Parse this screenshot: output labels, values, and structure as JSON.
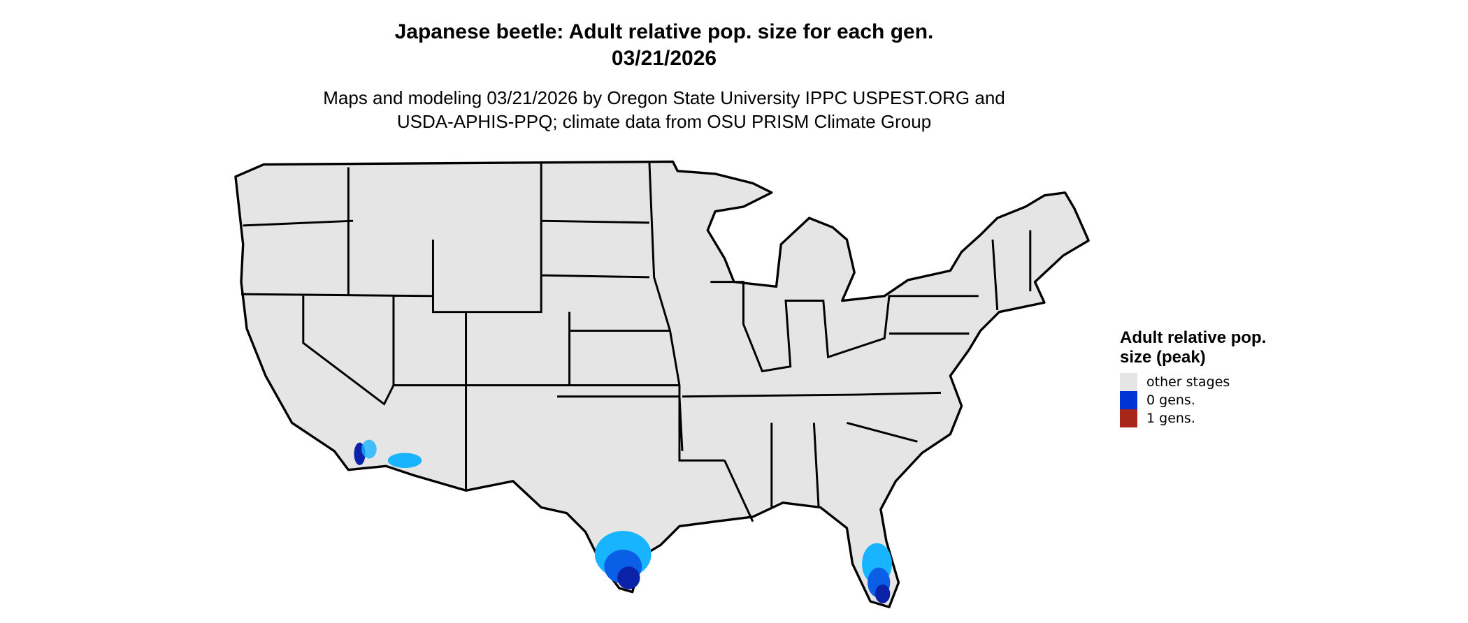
{
  "title": {
    "line1": "Japanese beetle: Adult relative pop. size for each gen.",
    "line2": "03/21/2026"
  },
  "subtitle": {
    "line1": "Maps and modeling 03/21/2026 by Oregon State University IPPC USPEST.ORG and",
    "line2": "USDA-APHIS-PPQ; climate data from OSU PRISM Climate Group"
  },
  "map": {
    "region": "Contiguous United States",
    "base_color": "#e5e5e5",
    "border_color": "#000000",
    "highlight_areas": [
      "southern California",
      "southern Arizona",
      "southern Texas",
      "southern Florida"
    ]
  },
  "legend": {
    "title": "Adult relative pop. size (peak)",
    "items": [
      {
        "label": "other stages",
        "color": "#e5e5e5"
      },
      {
        "label": "0 gens.",
        "color": "#0033d6"
      },
      {
        "label": "1 gens.",
        "color": "#a8261a"
      }
    ]
  }
}
